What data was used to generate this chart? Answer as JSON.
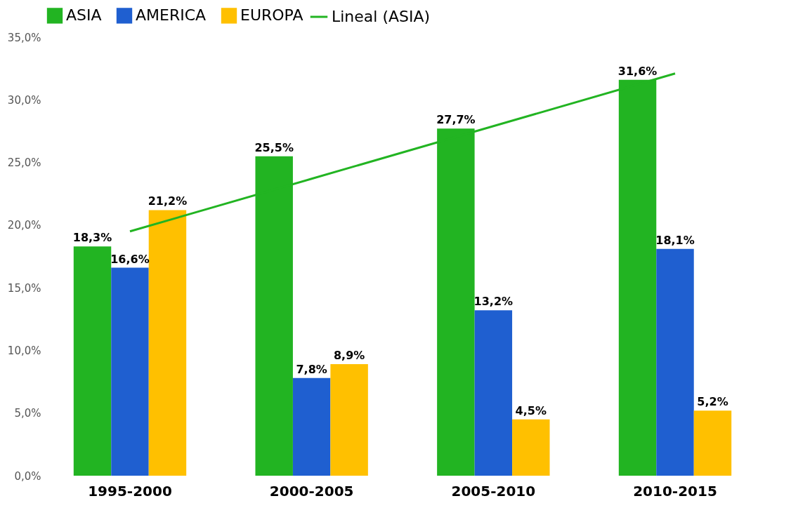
{
  "chart_data": {
    "type": "bar",
    "categories": [
      "1995-2000",
      "2000-2005",
      "2005-2010",
      "2010-2015"
    ],
    "series": [
      {
        "name": "ASIA",
        "color": "#22b422",
        "values": [
          18.3,
          25.5,
          27.7,
          31.6
        ],
        "value_labels": [
          "18,3%",
          "25,5%",
          "27,7%",
          "31,6%"
        ]
      },
      {
        "name": "AMERICA",
        "color": "#1f5fd0",
        "values": [
          16.6,
          7.8,
          13.2,
          18.1
        ],
        "value_labels": [
          "16,6%",
          "7,8%",
          "13,2%",
          "18,1%"
        ]
      },
      {
        "name": "EUROPA",
        "color": "#ffc000",
        "values": [
          21.2,
          8.9,
          4.5,
          5.2
        ],
        "value_labels": [
          "21,2%",
          "8,9%",
          "4,5%",
          "5,2%"
        ]
      },
      {
        "name": "Lineal (ASIA)",
        "type": "line",
        "color": "#22b422",
        "values": [
          19.5,
          23.7,
          27.9,
          32.1
        ]
      }
    ],
    "ylim": [
      0,
      35
    ],
    "yticks": [
      {
        "value": 0,
        "label": "0,0%"
      },
      {
        "value": 5,
        "label": "5,0%"
      },
      {
        "value": 10,
        "label": "10,0%"
      },
      {
        "value": 15,
        "label": "15,0%"
      },
      {
        "value": 20,
        "label": "20,0%"
      },
      {
        "value": 25,
        "label": "25,0%"
      },
      {
        "value": 30,
        "label": "30,0%"
      },
      {
        "value": 35,
        "label": "35,0%"
      }
    ],
    "grid": false,
    "legend": "top"
  }
}
